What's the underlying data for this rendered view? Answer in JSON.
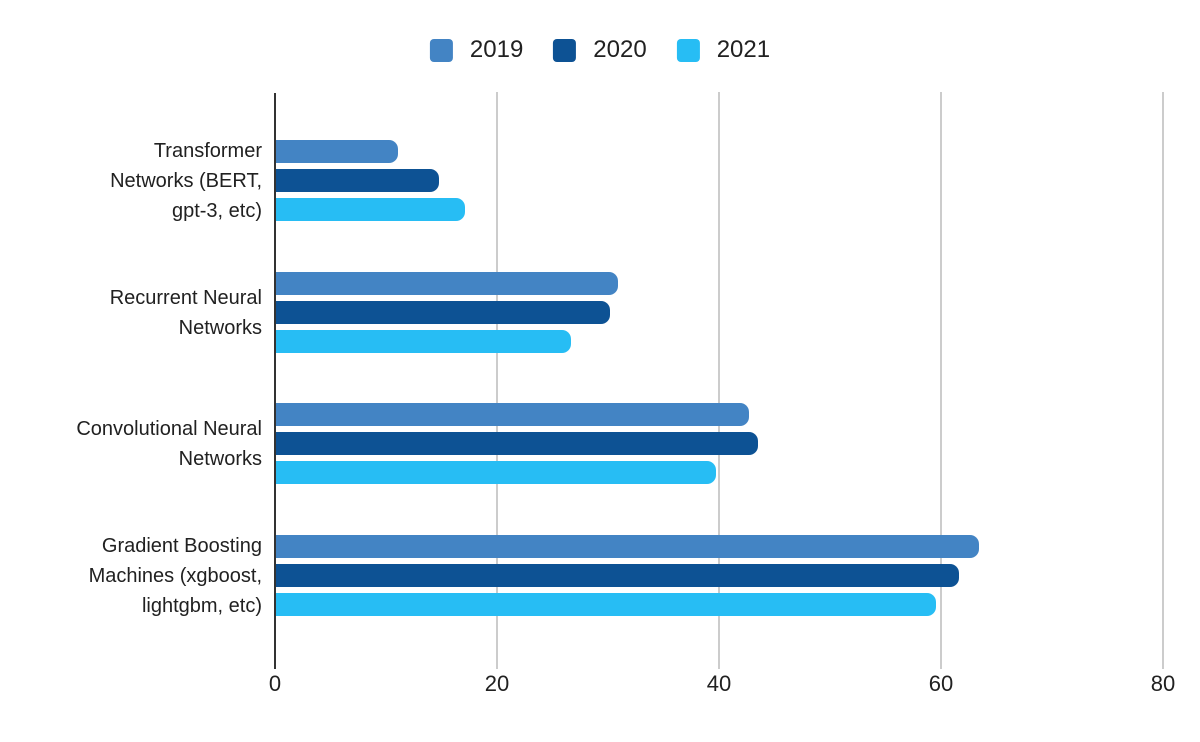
{
  "chart_data": {
    "type": "bar",
    "orientation": "horizontal",
    "title": "",
    "xlabel": "",
    "ylabel": "",
    "xlim": [
      0,
      80
    ],
    "x_ticks": [
      0,
      20,
      40,
      60,
      80
    ],
    "grid": true,
    "legend_position": "top",
    "categories": [
      {
        "label": "Transformer Networks (BERT, gpt-3, etc)",
        "lines": [
          "Transformer",
          "Networks (BERT,",
          "gpt-3, etc)"
        ]
      },
      {
        "label": "Recurrent Neural Networks",
        "lines": [
          "Recurrent Neural",
          "Networks"
        ]
      },
      {
        "label": "Convolutional Neural Networks",
        "lines": [
          "Convolutional Neural",
          "Networks"
        ]
      },
      {
        "label": "Gradient Boosting Machines (xgboost, lightgbm, etc)",
        "lines": [
          "Gradient Boosting",
          "Machines (xgboost,",
          "lightgbm, etc)"
        ]
      }
    ],
    "series": [
      {
        "name": "2019",
        "color": "#4384c4",
        "values": [
          11.0,
          30.8,
          42.6,
          63.3
        ]
      },
      {
        "name": "2020",
        "color": "#0d5294",
        "values": [
          14.7,
          30.1,
          43.4,
          61.5
        ]
      },
      {
        "name": "2021",
        "color": "#27bdf4",
        "values": [
          17.0,
          26.6,
          39.6,
          59.5
        ]
      }
    ]
  },
  "colors": {
    "background": "#ffffff",
    "axis_line": "#333333",
    "gridline": "#cccccc",
    "text": "#212121"
  }
}
